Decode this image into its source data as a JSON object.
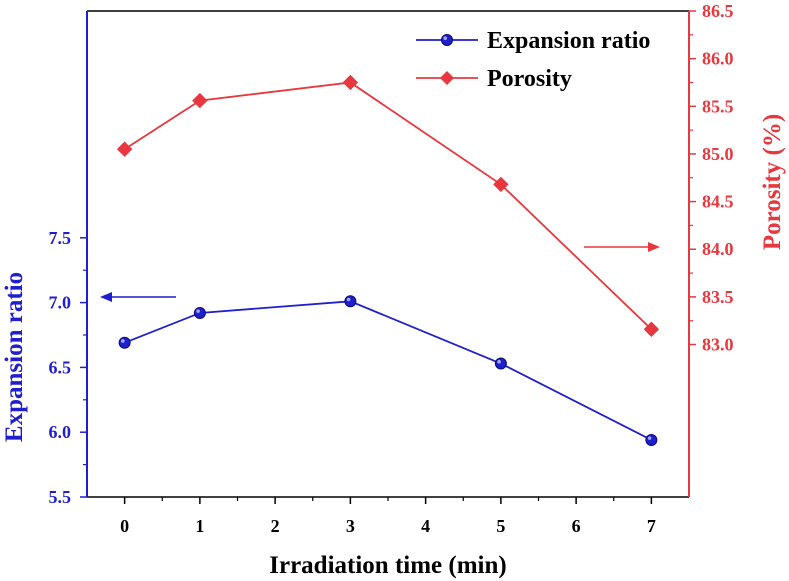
{
  "chart_data": {
    "type": "line",
    "xlabel": "Irradiation time (min)",
    "x_ticks": [
      0,
      1,
      2,
      3,
      4,
      5,
      6,
      7
    ],
    "xlim": [
      -0.5,
      7.5
    ],
    "left_axis": {
      "label": "Expansion ratio",
      "ylim": [
        5.5,
        9.25
      ],
      "ticks": [
        5.5,
        6.0,
        6.5,
        7.0,
        7.5
      ],
      "tick_labels": [
        "5.5",
        "6.0",
        "6.5",
        "7.0",
        "7.5"
      ],
      "color": "#1f1fcc"
    },
    "right_axis": {
      "label": "Porosity (%)",
      "ylim": [
        81.4,
        86.5
      ],
      "ticks": [
        83.0,
        83.5,
        84.0,
        84.5,
        85.0,
        85.5,
        86.0,
        86.5
      ],
      "tick_labels": [
        "83.0",
        "83.5",
        "84.0",
        "84.5",
        "85.0",
        "85.5",
        "86.0",
        "86.5"
      ],
      "color": "#e8373e"
    },
    "series": [
      {
        "name": "Expansion ratio",
        "axis": "left",
        "marker": "circle",
        "color": "#1f1fcc",
        "x": [
          0,
          1,
          3,
          5,
          7
        ],
        "values": [
          6.69,
          6.92,
          7.01,
          6.53,
          5.94
        ]
      },
      {
        "name": "Porosity",
        "axis": "right",
        "marker": "diamond",
        "color": "#e8373e",
        "x": [
          0,
          1,
          3,
          5,
          7
        ],
        "values": [
          85.05,
          85.56,
          85.75,
          84.68,
          83.16
        ]
      }
    ],
    "legend": {
      "position": "top-right",
      "entries": [
        "Expansion ratio",
        "Porosity"
      ]
    },
    "annotations": [
      {
        "kind": "arrow",
        "points_to": "left axis",
        "color": "#1f1fcc"
      },
      {
        "kind": "arrow",
        "points_to": "right axis",
        "color": "#e8373e"
      }
    ]
  }
}
